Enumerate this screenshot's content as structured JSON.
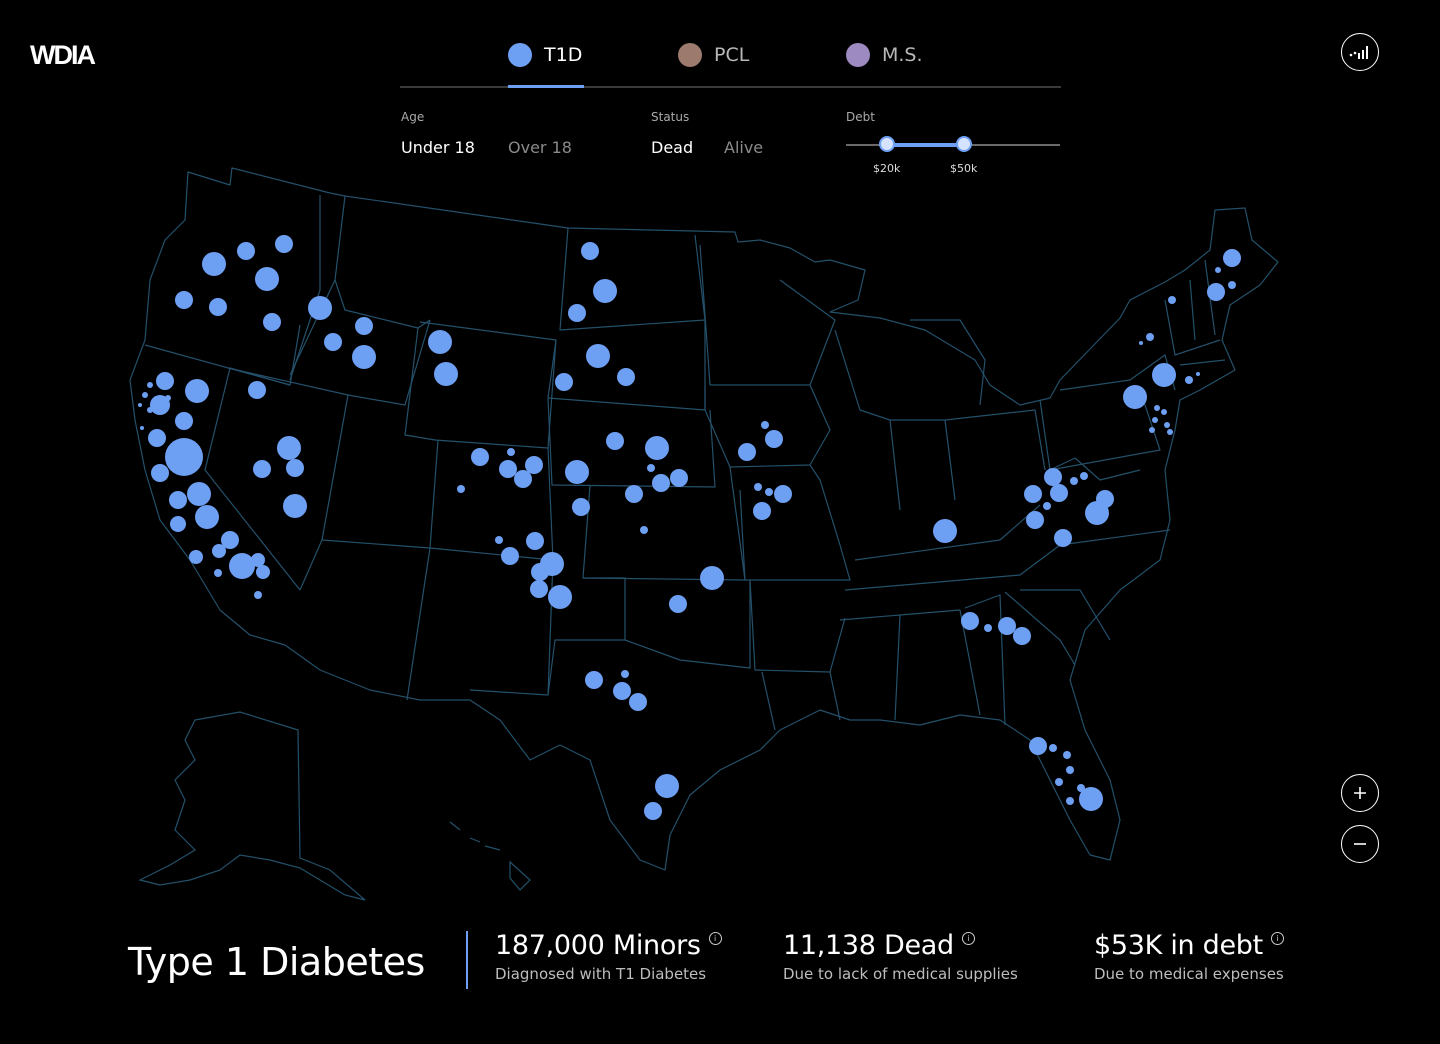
{
  "app": {
    "logo": "WDIA"
  },
  "tabs": [
    {
      "label": "T1D",
      "color": "#6d9ff3",
      "active": true
    },
    {
      "label": "PCL",
      "color": "#9c7a6e",
      "active": false
    },
    {
      "label": "M.S.",
      "color": "#9d8ac0",
      "active": false
    }
  ],
  "filters": {
    "age": {
      "label": "Age",
      "options": [
        "Under 18",
        "Over 18"
      ],
      "selected": "Under 18"
    },
    "status": {
      "label": "Status",
      "options": [
        "Dead",
        "Alive"
      ],
      "selected": "Dead"
    },
    "debt": {
      "label": "Debt",
      "min_value": "$20k",
      "max_value": "$50k"
    }
  },
  "accent_color": "#6d9ff3",
  "summary": {
    "title": "Type 1 Diabetes",
    "stats": [
      {
        "value": "187,000 Minors",
        "caption": "Diagnosed with T1 Diabetes"
      },
      {
        "value": "11,138 Dead",
        "caption": "Due to lack of medical supplies"
      },
      {
        "value": "$53K in debt",
        "caption": "Due to medical expenses"
      }
    ]
  },
  "icons": {
    "top_right": "signal-chart-icon",
    "zoom_in": "plus-icon",
    "zoom_out": "minus-icon",
    "info": "info-icon"
  }
}
